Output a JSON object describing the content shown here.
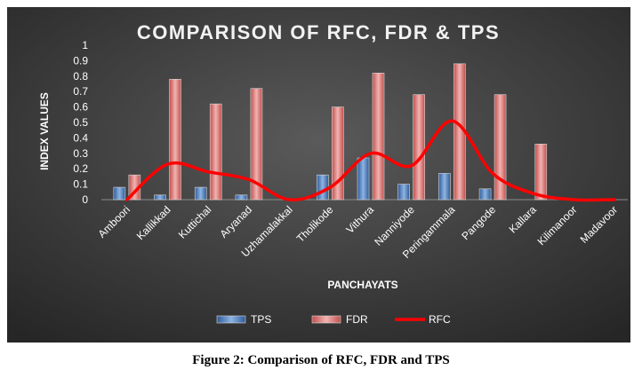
{
  "caption": "Figure 2: Comparison of RFC, FDR and TPS",
  "chart_data": {
    "type": "bar",
    "title": "COMPARISON OF RFC, FDR & TPS",
    "xlabel": "PANCHAYATS",
    "ylabel": "INDEX VALUES",
    "ylim": [
      0,
      1
    ],
    "yticks": [
      "0",
      "0.1",
      "0.2",
      "0.3",
      "0.4",
      "0.5",
      "0.6",
      "0.7",
      "0.8",
      "0.9",
      "1"
    ],
    "categories": [
      "Amboori",
      "Kallikkad",
      "Kuttichal",
      "Aryanad",
      "Uzhamalakkal",
      "Tholikode",
      "Vithura",
      "Nanniyode",
      "Peringammala",
      "Pangode",
      "Kallara",
      "Kilimanoor",
      "Madavoor"
    ],
    "series": [
      {
        "name": "TPS",
        "kind": "bar",
        "color": "#4f81bd",
        "values": [
          0.08,
          0.03,
          0.08,
          0.03,
          0,
          0.16,
          0.27,
          0.1,
          0.17,
          0.07,
          0,
          0,
          0
        ]
      },
      {
        "name": "FDR",
        "kind": "bar",
        "color": "#e06060",
        "values": [
          0.16,
          0.78,
          0.62,
          0.72,
          0,
          0.6,
          0.82,
          0.68,
          0.88,
          0.68,
          0.36,
          0,
          0
        ]
      },
      {
        "name": "RFC",
        "kind": "line",
        "color": "#ff0000",
        "values": [
          0,
          0.23,
          0.18,
          0.13,
          0,
          0.08,
          0.3,
          0.22,
          0.51,
          0.17,
          0.04,
          0,
          0
        ]
      }
    ],
    "grid": false,
    "legend": "bottom-center",
    "colors": {
      "background": "#3a3a3a",
      "text": "#ffffff",
      "tps": "#4f81bd",
      "fdr": "#e06060",
      "rfc": "#ff0000"
    }
  }
}
